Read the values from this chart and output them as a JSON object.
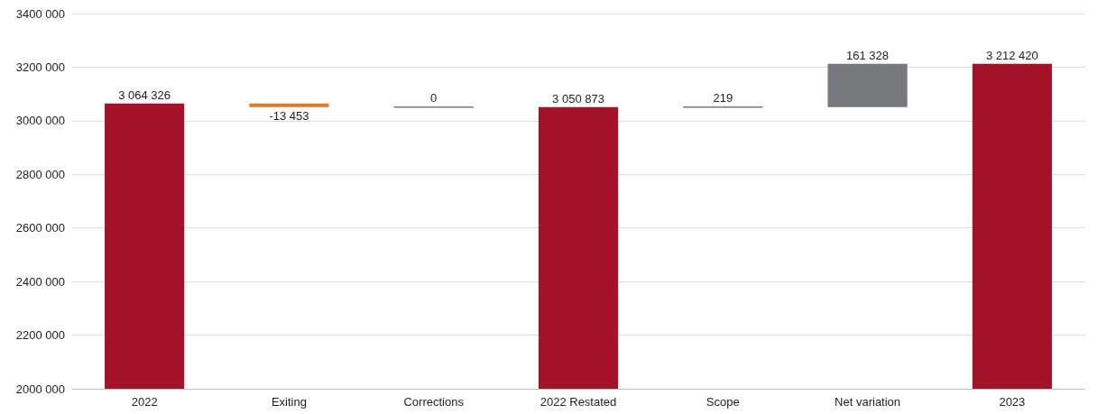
{
  "chart_data": {
    "type": "bar",
    "categories": [
      "2022",
      "Exiting",
      "Corrections",
      "2022 Restated",
      "Scope",
      "Net variation",
      "2023"
    ],
    "values": [
      3064326,
      -13453,
      0,
      3050873,
      219,
      161328,
      3212420
    ],
    "base": [
      null,
      3064326,
      3050873,
      null,
      3050873,
      3051092,
      null
    ],
    "colors": [
      "#a31228",
      "#e07b26",
      "#76787b",
      "#a31228",
      "#76787b",
      "#76787b",
      "#a31228"
    ],
    "value_labels": [
      "3 064 326",
      "-13 453",
      "0",
      "3 050 873",
      "219",
      "161 328",
      "3 212 420"
    ],
    "ylim": [
      2000000,
      3400000
    ],
    "yticks": [
      {
        "value": 2000000,
        "label": "2000 000"
      },
      {
        "value": 2200000,
        "label": "2200 000"
      },
      {
        "value": 2400000,
        "label": "2400 000"
      },
      {
        "value": 2600000,
        "label": "2600 000"
      },
      {
        "value": 2800000,
        "label": "2800 000"
      },
      {
        "value": 3000000,
        "label": "3000 000"
      },
      {
        "value": 3200000,
        "label": "3200 000"
      },
      {
        "value": 3400000,
        "label": "3400 000"
      }
    ],
    "grid": true
  }
}
